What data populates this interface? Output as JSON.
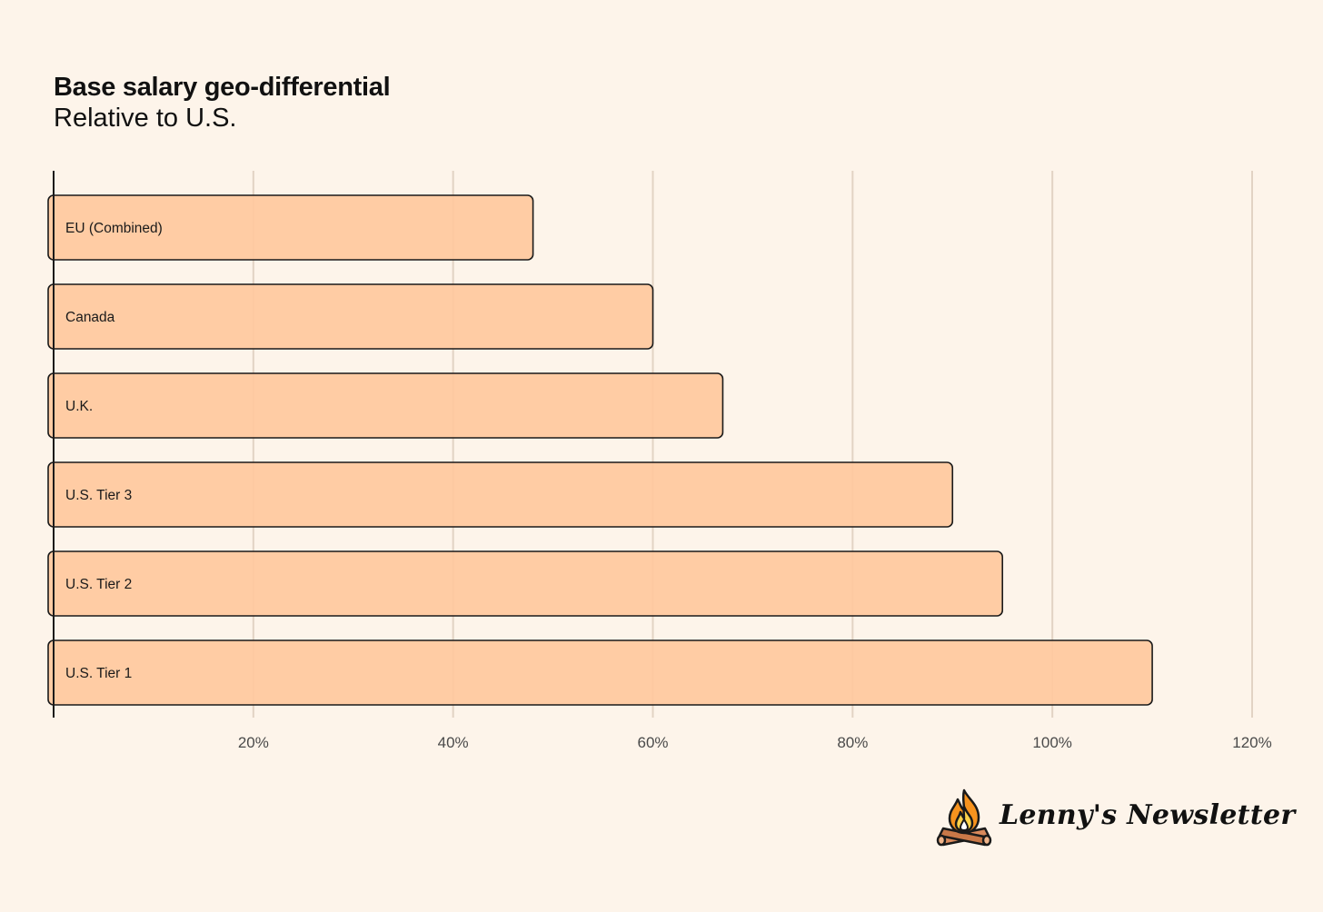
{
  "chart_data": {
    "type": "bar",
    "orientation": "horizontal",
    "title": "Base salary geo-differential",
    "subtitle": "Relative to U.S.",
    "categories": [
      "EU (Combined)",
      "Canada",
      "U.K.",
      "U.S. Tier 3",
      "U.S. Tier 2",
      "U.S. Tier 1"
    ],
    "values": [
      48,
      60,
      67,
      90,
      95,
      110
    ],
    "xlim": [
      0,
      120
    ],
    "xticks": [
      20,
      40,
      60,
      80,
      100,
      120
    ],
    "xtick_labels": [
      "20%",
      "40%",
      "60%",
      "80%",
      "100%",
      "120%"
    ],
    "grid": "vertical",
    "bar_color": "#ffc89e",
    "bar_edge_color": "#1a1a1a",
    "background_color": "#fdf4ea"
  },
  "branding": {
    "logo_text": "Lenny's Newsletter",
    "logo_icon": "campfire-icon"
  }
}
